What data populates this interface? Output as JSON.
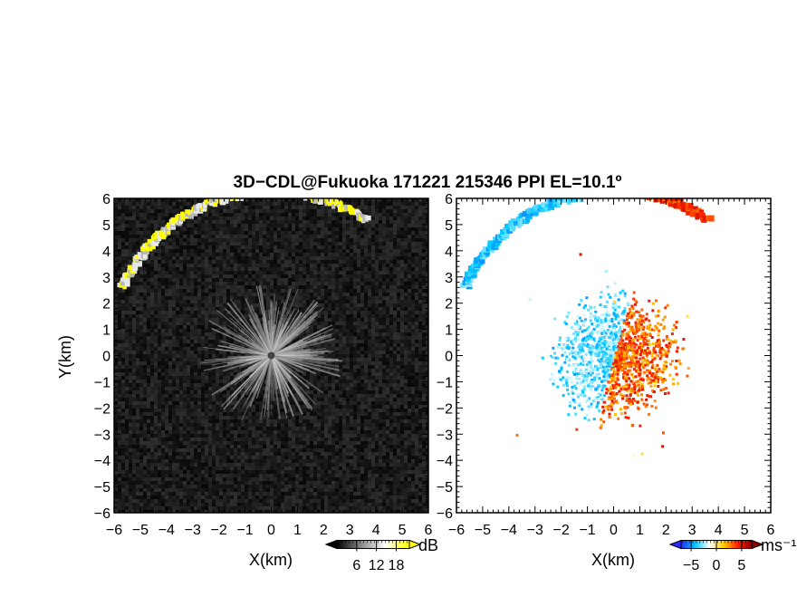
{
  "title": "3D−CDL@Fukuoka 171221 215346 PPI EL=10.1º",
  "chart_data": [
    {
      "type": "heatmap",
      "panel": "left",
      "quantity": "SNR",
      "xlabel": "X(km)",
      "ylabel": "Y(km)",
      "xlim": [
        -6,
        6
      ],
      "ylim": [
        -6,
        6
      ],
      "xticks": [
        "−6",
        "−5",
        "−4",
        "−3",
        "−2",
        "−1",
        "0",
        "1",
        "2",
        "3",
        "4",
        "5",
        "6"
      ],
      "yticks": [
        "−6",
        "−5",
        "−4",
        "−3",
        "−2",
        "−1",
        "0",
        "1",
        "2",
        "3",
        "4",
        "5",
        "6"
      ],
      "features": [
        {
          "name": "cloud-base arc",
          "radius_km": 6.3,
          "from_deg": 205,
          "to_deg": 305,
          "intensity": "high (yellow)"
        },
        {
          "name": "near-range clear-air echo",
          "radius_km": 2.5,
          "intensity": "moderate (grey)"
        }
      ],
      "colorbar": {
        "label": "dB",
        "ticks": [
          "6",
          "12",
          "18"
        ],
        "range": [
          0,
          22
        ],
        "colors": [
          "#000000",
          "#888888",
          "#ffffff",
          "#ffff00"
        ]
      },
      "background": "#1c1c1c"
    },
    {
      "type": "heatmap",
      "panel": "right",
      "quantity": "Doppler velocity",
      "xlabel": "X(km)",
      "ylabel": "",
      "xlim": [
        -6,
        6
      ],
      "ylim": [
        -6,
        6
      ],
      "xticks": [
        "−6",
        "−5",
        "−4",
        "−3",
        "−2",
        "−1",
        "0",
        "1",
        "2",
        "3",
        "4",
        "5",
        "6"
      ],
      "yticks": [
        "−6",
        "−5",
        "−4",
        "−3",
        "−2",
        "−1",
        "0",
        "1",
        "2",
        "3",
        "4",
        "5",
        "6"
      ],
      "features": [
        {
          "name": "cloud-base arc west",
          "radius_km": 6.3,
          "from_deg": 205,
          "to_deg": 268,
          "velocity_ms": -4
        },
        {
          "name": "cloud-base arc east",
          "radius_km": 6.3,
          "from_deg": 280,
          "to_deg": 305,
          "velocity_ms": 4
        },
        {
          "name": "near-range wind field",
          "radius_km": 2.4,
          "velocity_ms_range": [
            -5,
            5
          ],
          "zero_line_azimuth_deg": 15
        }
      ],
      "colorbar": {
        "label": "ms⁻¹",
        "ticks": [
          "−5",
          "0",
          "5"
        ],
        "range": [
          -7,
          7
        ],
        "colors": [
          "#2a2aff",
          "#00c8ff",
          "#ffffff",
          "#ffd000",
          "#ff2000",
          "#8b0000"
        ]
      },
      "background": "#ffffff"
    }
  ]
}
